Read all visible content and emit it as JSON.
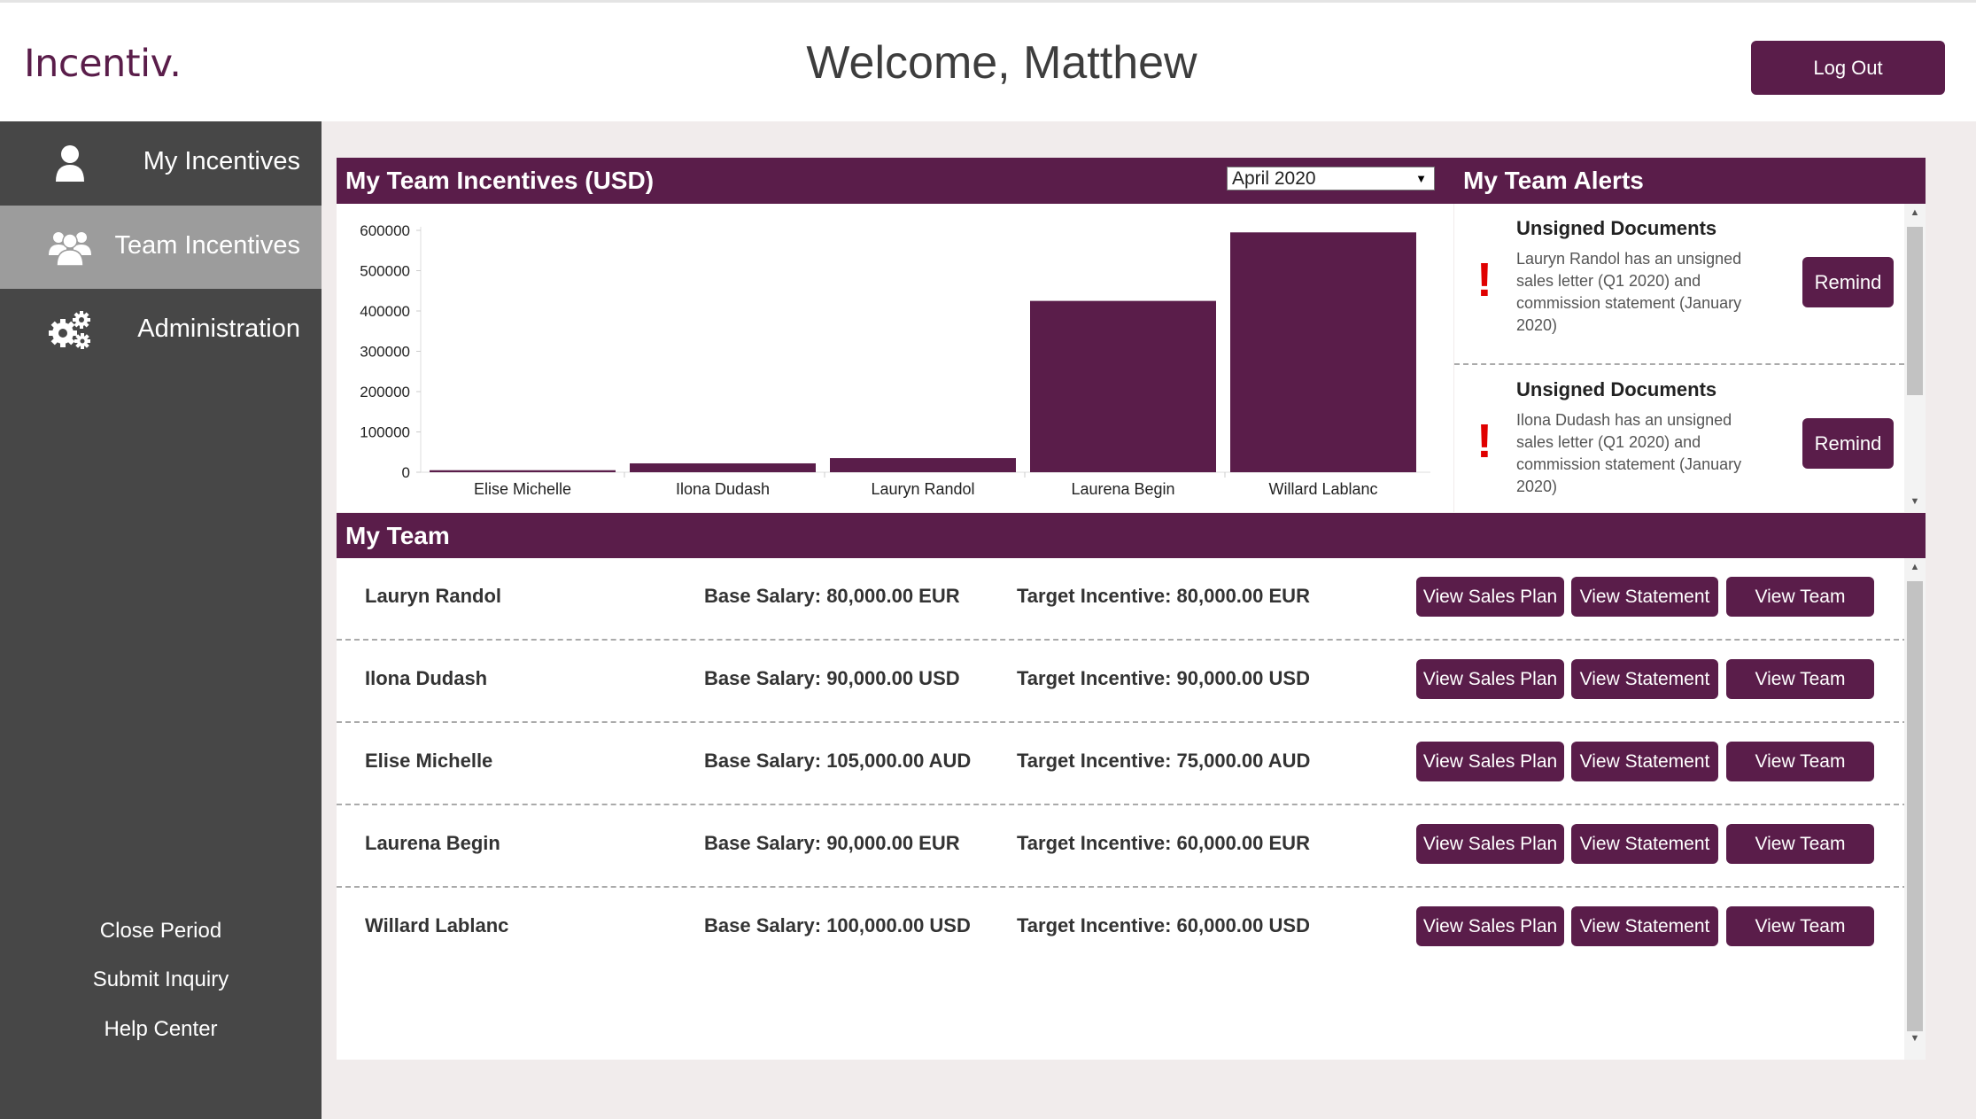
{
  "header": {
    "logo": "Incentiv.",
    "welcome": "Welcome, Matthew",
    "logout_label": "Log Out"
  },
  "sidebar": {
    "items": [
      {
        "label": "My Incentives",
        "icon": "user-icon",
        "active": false
      },
      {
        "label": "Team Incentives",
        "icon": "users-icon",
        "active": true
      },
      {
        "label": "Administration",
        "icon": "gears-icon",
        "active": false
      }
    ],
    "footer_links": [
      "Close Period",
      "Submit Inquiry",
      "Help Center"
    ]
  },
  "incentives_panel": {
    "title": "My Team Incentives (USD)",
    "selected_month": "April 2020"
  },
  "chart_data": {
    "type": "bar",
    "categories": [
      "Elise Michelle",
      "Ilona Dudash",
      "Lauryn Randol",
      "Laurena Begin",
      "Willard Lablanc"
    ],
    "values": [
      5000,
      22000,
      35000,
      425000,
      595000
    ],
    "ylim": [
      0,
      600000
    ],
    "yticks": [
      "0",
      "100000",
      "200000",
      "300000",
      "400000",
      "500000",
      "600000"
    ],
    "color": "#5a1d4a"
  },
  "alerts_panel": {
    "title": "My Team Alerts",
    "alerts": [
      {
        "title": "Unsigned Documents",
        "text": "Lauryn Randol has an unsigned sales letter (Q1 2020) and commission statement (January 2020)",
        "button": "Remind"
      },
      {
        "title": "Unsigned Documents",
        "text": "Ilona Dudash has an unsigned sales letter (Q1 2020) and commission statement (January 2020)",
        "button": "Remind"
      }
    ]
  },
  "team_panel": {
    "title": "My Team",
    "buttons": {
      "sales_plan": "View Sales Plan",
      "statement": "View Statement",
      "team": "View Team"
    },
    "members": [
      {
        "name": "Lauryn Randol",
        "salary": "Base Salary: 80,000.00 EUR",
        "target": "Target Incentive: 80,000.00 EUR"
      },
      {
        "name": "Ilona Dudash",
        "salary": "Base Salary: 90,000.00 USD",
        "target": "Target Incentive: 90,000.00 USD"
      },
      {
        "name": "Elise Michelle",
        "salary": "Base Salary: 105,000.00 AUD",
        "target": "Target Incentive: 75,000.00 AUD"
      },
      {
        "name": "Laurena Begin",
        "salary": "Base Salary: 90,000.00 EUR",
        "target": "Target Incentive: 60,000.00 EUR"
      },
      {
        "name": "Willard Lablanc",
        "salary": "Base Salary: 100,000.00 USD",
        "target": "Target Incentive: 60,000.00 USD"
      }
    ]
  },
  "colors": {
    "brand": "#5a1d4a",
    "sidebar": "#474747",
    "sidebar_active": "#9c9c9c",
    "alert": "#e00000"
  }
}
